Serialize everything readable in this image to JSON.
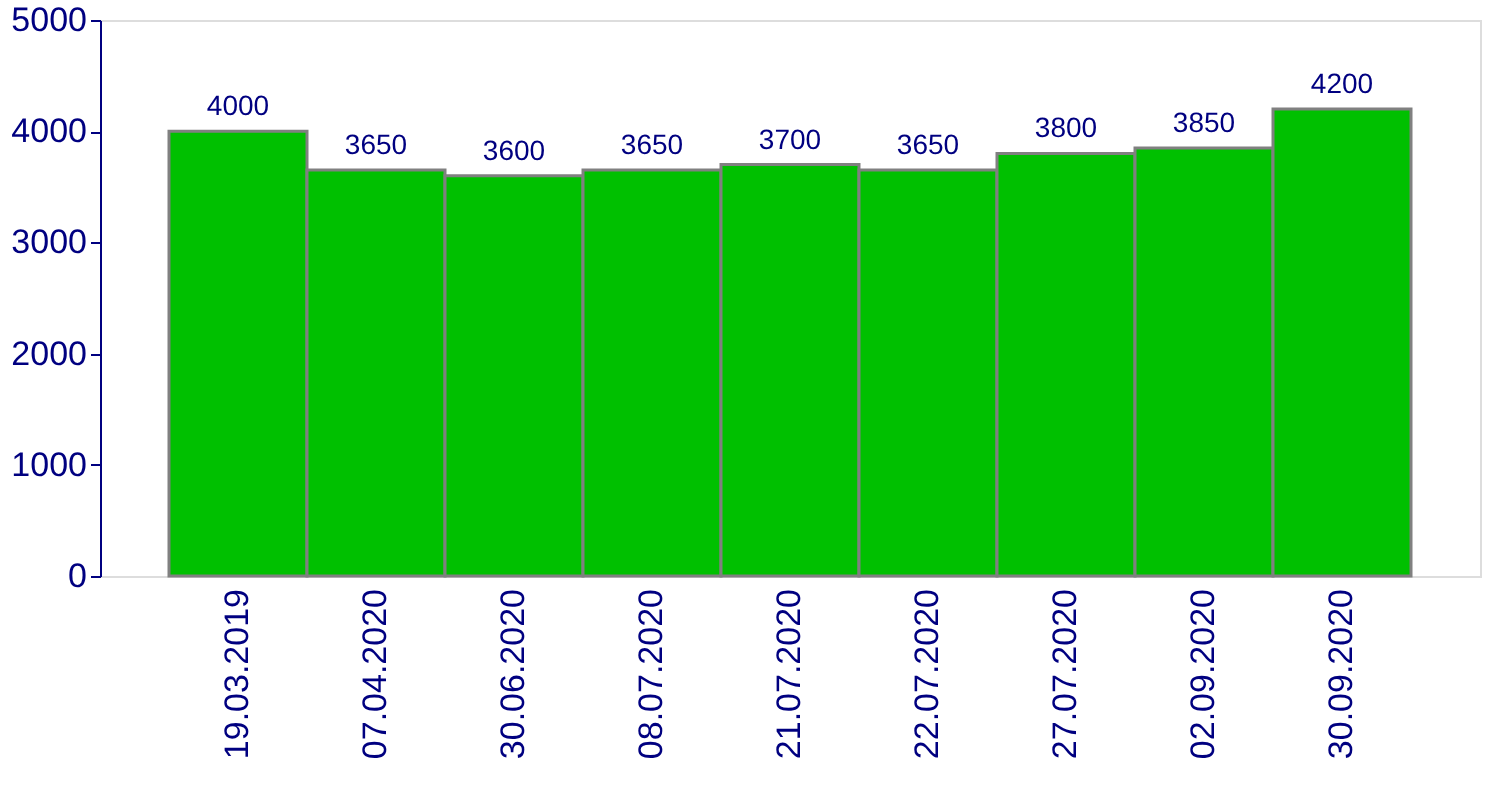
{
  "chart_data": {
    "type": "bar",
    "categories": [
      "19.03.2019",
      "07.04.2020",
      "30.06.2020",
      "08.07.2020",
      "21.07.2020",
      "22.07.2020",
      "27.07.2020",
      "02.09.2020",
      "30.09.2020"
    ],
    "values": [
      4000,
      3650,
      3600,
      3650,
      3700,
      3650,
      3800,
      3850,
      4200
    ],
    "color": "#00c000",
    "ylim": [
      0,
      5000
    ],
    "yticks": [
      0,
      1000,
      2000,
      3000,
      4000,
      5000
    ],
    "grid": false,
    "data_labels": true
  }
}
